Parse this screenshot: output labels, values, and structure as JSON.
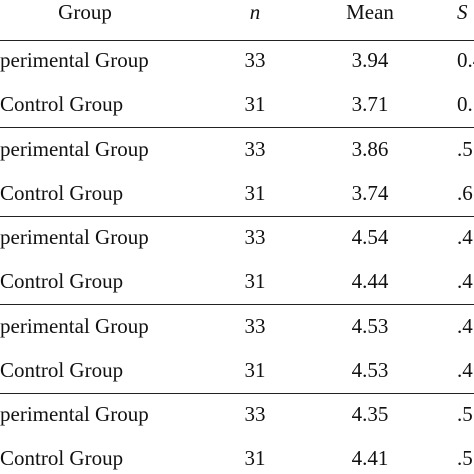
{
  "table": {
    "header": [
      "Group",
      "n",
      "Mean",
      "S"
    ],
    "rows": [
      [
        "perimental Group",
        "33",
        "3.94",
        "0.4"
      ],
      [
        "Control Group",
        "31",
        "3.71",
        "0."
      ],
      [
        "perimental Group",
        "33",
        "3.86",
        ".5"
      ],
      [
        "Control Group",
        "31",
        "3.74",
        ".6"
      ],
      [
        "perimental Group",
        "33",
        "4.54",
        ".4"
      ],
      [
        "Control Group",
        "31",
        "4.44",
        ".4"
      ],
      [
        "perimental Group",
        "33",
        "4.53",
        ".4"
      ],
      [
        "Control Group",
        "31",
        "4.53",
        ".4"
      ],
      [
        "perimental Group",
        "33",
        "4.35",
        ".5"
      ],
      [
        "Control Group",
        "31",
        "4.41",
        ".5"
      ]
    ]
  }
}
